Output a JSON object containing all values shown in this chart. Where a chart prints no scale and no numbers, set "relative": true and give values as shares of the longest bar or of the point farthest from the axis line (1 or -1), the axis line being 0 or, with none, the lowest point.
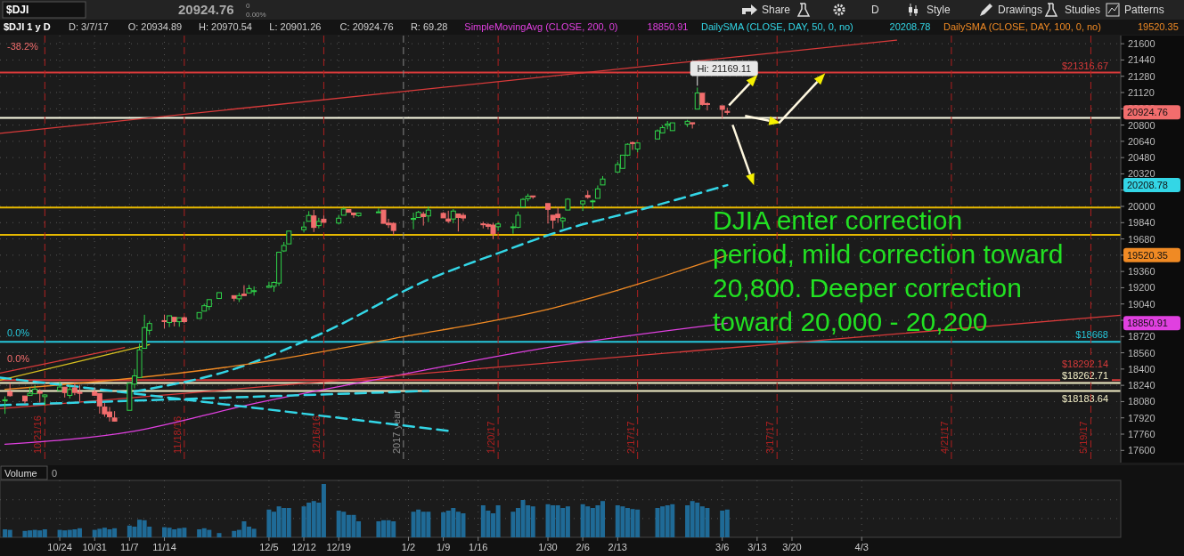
{
  "chart_data": [
    {
      "type": "candlestick",
      "title": "$DJI 1 y D",
      "x": [
        "2016-10-13",
        "2016-10-14",
        "2016-10-17",
        "2016-10-18",
        "2016-10-19",
        "2016-10-20",
        "2016-10-21",
        "2016-10-24",
        "2016-10-25",
        "2016-10-26",
        "2016-10-27",
        "2016-10-28",
        "2016-10-31",
        "2016-11-01",
        "2016-11-02",
        "2016-11-03",
        "2016-11-04",
        "2016-11-07",
        "2016-11-08",
        "2016-11-09",
        "2016-11-10",
        "2016-11-11",
        "2016-11-14",
        "2016-11-15",
        "2016-11-16",
        "2016-11-17",
        "2016-11-18",
        "2016-11-21",
        "2016-11-22",
        "2016-11-23",
        "2016-11-25",
        "2016-11-28",
        "2016-11-29",
        "2016-11-30",
        "2016-12-01",
        "2016-12-02",
        "2016-12-05",
        "2016-12-06",
        "2016-12-07",
        "2016-12-08",
        "2016-12-09",
        "2016-12-12",
        "2016-12-13",
        "2016-12-14",
        "2016-12-15",
        "2016-12-16",
        "2016-12-19",
        "2016-12-20",
        "2016-12-21",
        "2016-12-22",
        "2016-12-23",
        "2016-12-27",
        "2016-12-28",
        "2016-12-29",
        "2016-12-30",
        "2017-01-03",
        "2017-01-04",
        "2017-01-05",
        "2017-01-06",
        "2017-01-09",
        "2017-01-10",
        "2017-01-11",
        "2017-01-12",
        "2017-01-13",
        "2017-01-17",
        "2017-01-18",
        "2017-01-19",
        "2017-01-20",
        "2017-01-23",
        "2017-01-24",
        "2017-01-25",
        "2017-01-26",
        "2017-01-27",
        "2017-01-30",
        "2017-01-31",
        "2017-02-01",
        "2017-02-02",
        "2017-02-03",
        "2017-02-06",
        "2017-02-07",
        "2017-02-08",
        "2017-02-09",
        "2017-02-10",
        "2017-02-13",
        "2017-02-14",
        "2017-02-15",
        "2017-02-16",
        "2017-02-17",
        "2017-02-21",
        "2017-02-22",
        "2017-02-23",
        "2017-02-24",
        "2017-02-27",
        "2017-02-28",
        "2017-03-01",
        "2017-03-02",
        "2017-03-03",
        "2017-03-06",
        "2017-03-07"
      ],
      "ohlc": [
        [
          18088,
          18131,
          17959,
          18098
        ],
        [
          18177,
          18261,
          18129,
          18138
        ],
        [
          18135,
          18135,
          18060,
          18086
        ],
        [
          18140,
          18221,
          18140,
          18161
        ],
        [
          18157,
          18244,
          18157,
          18202
        ],
        [
          18178,
          18202,
          18071,
          18162
        ],
        [
          18129,
          18151,
          18041,
          18145
        ],
        [
          18189,
          18278,
          18189,
          18223
        ],
        [
          18222,
          18222,
          18120,
          18169
        ],
        [
          18141,
          18242,
          18111,
          18199
        ],
        [
          18215,
          18266,
          18143,
          18170
        ],
        [
          18172,
          18244,
          18080,
          18161
        ],
        [
          18176,
          18219,
          18142,
          18142
        ],
        [
          18158,
          18158,
          17962,
          18037
        ],
        [
          18026,
          18067,
          17931,
          17959
        ],
        [
          17978,
          18026,
          17884,
          17930
        ],
        [
          17919,
          17986,
          17884,
          17888
        ],
        [
          17994,
          18263,
          17994,
          18260
        ],
        [
          18252,
          18400,
          18210,
          18333
        ],
        [
          18317,
          18650,
          18317,
          18589
        ],
        [
          18604,
          18934,
          18604,
          18808
        ],
        [
          18781,
          18873,
          18736,
          18848
        ],
        [
          18876,
          18935,
          18801,
          18869
        ],
        [
          18858,
          18925,
          18813,
          18924
        ],
        [
          18909,
          18909,
          18820,
          18868
        ],
        [
          18866,
          18904,
          18816,
          18904
        ],
        [
          18905,
          18915,
          18849,
          18867
        ],
        [
          18898,
          18957,
          18898,
          18956
        ],
        [
          18970,
          19043,
          18970,
          19023
        ],
        [
          19015,
          19084,
          18980,
          19083
        ],
        [
          19094,
          19153,
          19094,
          19152
        ],
        [
          19122,
          19122,
          19067,
          19097
        ],
        [
          19091,
          19150,
          19059,
          19122
        ],
        [
          19137,
          19225,
          19122,
          19123
        ],
        [
          19149,
          19228,
          19149,
          19191
        ],
        [
          19162,
          19213,
          19122,
          19171
        ],
        [
          19203,
          19259,
          19203,
          19216
        ],
        [
          19215,
          19260,
          19160,
          19252
        ],
        [
          19246,
          19549,
          19219,
          19549
        ],
        [
          19562,
          19650,
          19552,
          19615
        ],
        [
          19631,
          19757,
          19630,
          19757
        ],
        [
          19771,
          19851,
          19743,
          19797
        ],
        [
          19853,
          19953,
          19853,
          19911
        ],
        [
          19906,
          19966,
          19748,
          19793
        ],
        [
          19811,
          19888,
          19784,
          19852
        ],
        [
          19874,
          19910,
          19843,
          19843
        ],
        [
          19836,
          19917,
          19822,
          19884
        ],
        [
          19913,
          19987,
          19913,
          19974
        ],
        [
          19969,
          19969,
          19941,
          19942
        ],
        [
          19935,
          19939,
          19888,
          19918
        ],
        [
          19909,
          19934,
          19899,
          19934
        ],
        [
          19943,
          19980,
          19939,
          19946
        ],
        [
          19964,
          19965,
          19833,
          19833
        ],
        [
          19835,
          19878,
          19788,
          19819
        ],
        [
          19833,
          19843,
          19718,
          19763
        ],
        [
          19872,
          19938,
          19775,
          19882
        ],
        [
          19891,
          19956,
          19891,
          19942
        ],
        [
          19924,
          19948,
          19811,
          19899
        ],
        [
          19906,
          19999,
          19845,
          19964
        ],
        [
          19931,
          19943,
          19887,
          19887
        ],
        [
          19876,
          19957,
          19836,
          19855
        ],
        [
          19876,
          19973,
          19834,
          19954
        ],
        [
          19926,
          19926,
          19753,
          19891
        ],
        [
          19912,
          19935,
          19856,
          19886
        ],
        [
          19828,
          19849,
          19784,
          19826
        ],
        [
          19822,
          19836,
          19774,
          19804
        ],
        [
          19816,
          19838,
          19678,
          19732
        ],
        [
          19800,
          19843,
          19759,
          19827
        ],
        [
          19795,
          19833,
          19731,
          19799
        ],
        [
          19794,
          19949,
          19786,
          19913
        ],
        [
          19994,
          20082,
          19994,
          20069
        ],
        [
          20076,
          20125,
          20050,
          20100
        ],
        [
          20103,
          20104,
          20074,
          20094
        ],
        [
          20028,
          20028,
          19831,
          19971
        ],
        [
          19913,
          19913,
          19781,
          19864
        ],
        [
          19923,
          19989,
          19837,
          19891
        ],
        [
          19858,
          19897,
          19784,
          19884
        ],
        [
          19964,
          20081,
          19964,
          20071
        ],
        [
          20025,
          20060,
          19955,
          20053
        ],
        [
          20107,
          20155,
          20075,
          20090
        ],
        [
          20049,
          20067,
          19973,
          20054
        ],
        [
          20079,
          20206,
          20079,
          20172
        ],
        [
          20211,
          20298,
          20211,
          20269
        ],
        [
          20338,
          20441,
          20338,
          20412
        ],
        [
          20374,
          20504,
          20374,
          20504
        ],
        [
          20504,
          20620,
          20495,
          20611
        ],
        [
          20627,
          20639,
          20556,
          20619
        ],
        [
          20564,
          20624,
          20532,
          20624
        ],
        [
          20663,
          20757,
          20663,
          20743
        ],
        [
          20723,
          20799,
          20721,
          20775
        ],
        [
          20796,
          20840,
          20758,
          20810
        ],
        [
          20745,
          20822,
          20745,
          20822
        ],
        [
          20808,
          20851,
          20781,
          20837
        ],
        [
          20823,
          20823,
          20766,
          20812
        ],
        [
          20957,
          21169.11,
          20957,
          21115
        ],
        [
          21113,
          21113,
          20991,
          21003
        ],
        [
          21011,
          21025,
          20944,
          21006
        ],
        [
          20989,
          20989,
          20863,
          20954
        ],
        [
          20934.89,
          20970.54,
          20901.26,
          20924.76
        ]
      ],
      "series": [
        {
          "type": "line",
          "name": "SimpleMovingAvg (CLOSE, 200, 0)",
          "color": "#e040e0",
          "x": [
            "2016-10-13",
            "2016-11-08",
            "2016-12-01",
            "2016-12-30",
            "2017-01-31",
            "2017-03-07"
          ],
          "values": [
            17660,
            17790,
            18050,
            18330,
            18620,
            18851
          ]
        },
        {
          "type": "line",
          "name": "DailySMA (CLOSE, DAY, 50, 0, no)",
          "color": "#33d6e6",
          "line_style": "dashed",
          "x": [
            "2016-11-08",
            "2016-11-28",
            "2016-12-16",
            "2017-01-06",
            "2017-01-20",
            "2017-02-03",
            "2017-02-17",
            "2017-03-07"
          ],
          "values": [
            18180,
            18400,
            18760,
            19280,
            19540,
            19780,
            19960,
            20209
          ]
        },
        {
          "type": "line",
          "name": "DailySMA (CLOSE, DAY, 100, 0, no)",
          "color": "#f08a24",
          "x": [
            "2016-10-13",
            "2016-12-01",
            "2016-12-30",
            "2017-01-31",
            "2017-03-07"
          ],
          "values": [
            18200,
            18450,
            18700,
            19000,
            19520
          ]
        },
        {
          "type": "line",
          "color": "#d83a3a",
          "x": [
            "2016-10-12",
            "2017-04-10"
          ],
          "values": [
            20718,
            21635
          ]
        },
        {
          "type": "line",
          "color": "#d83a3a",
          "x": [
            "2016-10-12",
            "2017-05-25"
          ],
          "values": [
            18010,
            18930
          ]
        },
        {
          "type": "line",
          "color": "#d83a3a",
          "x": [
            "2016-10-12",
            "2016-11-06"
          ],
          "values": [
            18360,
            18613
          ]
        },
        {
          "type": "line",
          "color": "#d8c020",
          "x": [
            "2016-10-12",
            "2016-11-11"
          ],
          "values": [
            18290,
            18640
          ]
        },
        {
          "type": "line",
          "color": "#33d6e6",
          "line_style": "dashed",
          "x": [
            "2016-10-12",
            "2017-01-10"
          ],
          "values": [
            18316,
            17792
          ]
        },
        {
          "type": "line",
          "color": "#33d6e6",
          "line_style": "dashed",
          "x": [
            "2016-10-12",
            "2017-01-06"
          ],
          "values": [
            18045,
            18185
          ]
        }
      ],
      "ref_lines": [
        {
          "axis": "y",
          "value": 21316.67,
          "label": "$21316.67",
          "color": "#d83a3a"
        },
        {
          "axis": "y",
          "value": 20870,
          "label": null,
          "color": "#ffffe8"
        },
        {
          "axis": "y",
          "value": 19990,
          "label": null,
          "color": "#e6b800"
        },
        {
          "axis": "y",
          "value": 19720,
          "label": null,
          "color": "#e6b800"
        },
        {
          "axis": "y",
          "value": 18668,
          "label": "$18668",
          "color": "#26c6da"
        },
        {
          "axis": "y",
          "value": 18292.14,
          "label": "$18292.14",
          "color": "#d83a3a"
        },
        {
          "axis": "y",
          "value": 18262.71,
          "label": "$18262.71",
          "color": "#f4f0c8"
        },
        {
          "axis": "y",
          "value": 18183.64,
          "label": "$18183.64",
          "color": "#f4f0c8"
        },
        {
          "axis": "x",
          "value": "2016-10-21",
          "label": "10/21/16",
          "color": "#b02020",
          "line_style": "dashed"
        },
        {
          "axis": "x",
          "value": "2016-11-18",
          "label": "11/18/16",
          "color": "#b02020",
          "line_style": "dashed"
        },
        {
          "axis": "x",
          "value": "2016-12-16",
          "label": "12/16/16",
          "color": "#b02020",
          "line_style": "dashed"
        },
        {
          "axis": "x",
          "value": "2017-01-01",
          "label": "2017 year",
          "color": "#888888",
          "line_style": "dashed"
        },
        {
          "axis": "x",
          "value": "2017-01-20",
          "label": "1/20/17",
          "color": "#b02020",
          "line_style": "dashed"
        },
        {
          "axis": "x",
          "value": "2017-02-17",
          "label": "2/17/17",
          "color": "#b02020",
          "line_style": "dashed"
        },
        {
          "axis": "x",
          "value": "2017-03-17",
          "label": "3/17/17",
          "color": "#b02020",
          "line_style": "dashed"
        },
        {
          "axis": "x",
          "value": "2017-04-21",
          "label": "4/21/17",
          "color": "#b02020",
          "line_style": "dashed"
        },
        {
          "axis": "x",
          "value": "2017-05-19",
          "label": "5/19/17",
          "color": "#b02020",
          "line_style": "dashed"
        }
      ],
      "annotations": [
        "$DJI",
        "0",
        "0.00%",
        "D: 3/7/17",
        "O: 20934.89",
        "H: 20970.54",
        "L: 20901.26",
        "C: 20924.76",
        "R: 69.28",
        "Share",
        "D",
        "Style",
        "Drawings",
        "Studies",
        "Patterns",
        {
          "text": "Hi: 21169.11",
          "x": "2017-03-01",
          "y": 21169.11
        },
        "-38.2%",
        "0.0%",
        "0.0%",
        "DJIA enter correction",
        "period, mild correction toward",
        "20,800. Deeper correction",
        "toward 20,000 - 20,200",
        "20924.76",
        "18850.91",
        "20208.78",
        "19520.35",
        "20924.76",
        "20208.78",
        "19520.35",
        "18850.91"
      ],
      "xlim": [
        "2016-10-12",
        "2017-05-25"
      ],
      "xticks": [
        {
          "value": "2016-10-24",
          "label": null
        },
        {
          "value": "2016-10-31",
          "label": null
        },
        {
          "value": "2016-11-07",
          "label": null
        },
        {
          "value": "2016-11-14",
          "label": null
        },
        {
          "value": "2016-12-05",
          "label": null
        },
        {
          "value": "2016-12-12",
          "label": null
        },
        {
          "value": "2016-12-19",
          "label": null
        },
        {
          "value": "2017-01-02",
          "label": null
        },
        {
          "value": "2017-01-09",
          "label": null
        },
        {
          "value": "2017-01-16",
          "label": null
        },
        {
          "value": "2017-01-30",
          "label": null
        },
        {
          "value": "2017-02-06",
          "label": null
        },
        {
          "value": "2017-02-13",
          "label": null
        },
        {
          "value": "2017-03-06",
          "label": null
        },
        {
          "value": "2017-03-13",
          "label": null
        },
        {
          "value": "2017-03-20",
          "label": null
        },
        {
          "value": "2017-04-03",
          "label": null
        }
      ],
      "ylim": [
        17480,
        21680
      ],
      "yticks": [
        17600,
        17760,
        17920,
        18080,
        18240,
        18400,
        18560,
        18720,
        {
          "value": 18880,
          "label": null
        },
        19040,
        19200,
        19360,
        {
          "value": 19520,
          "label": null
        },
        19680,
        19840,
        20000,
        {
          "value": 20160,
          "label": null
        },
        20320,
        20480,
        20640,
        20800,
        20960,
        21120,
        21280,
        21440,
        21600
      ],
      "tick_labels": "y",
      "grid": true
    },
    {
      "type": "bar",
      "title": "Volume",
      "relative": true,
      "color": "#1f6a96",
      "annotations": [
        "0"
      ],
      "tick_labels": "x",
      "grid": true,
      "x": [
        "2016-10-13",
        "2016-10-14",
        "2016-10-17",
        "2016-10-18",
        "2016-10-19",
        "2016-10-20",
        "2016-10-21",
        "2016-10-24",
        "2016-10-25",
        "2016-10-26",
        "2016-10-27",
        "2016-10-28",
        "2016-10-31",
        "2016-11-01",
        "2016-11-02",
        "2016-11-03",
        "2016-11-04",
        "2016-11-07",
        "2016-11-08",
        "2016-11-09",
        "2016-11-10",
        "2016-11-11",
        "2016-11-14",
        "2016-11-15",
        "2016-11-16",
        "2016-11-17",
        "2016-11-18",
        "2016-11-21",
        "2016-11-22",
        "2016-11-23",
        "2016-11-25",
        "2016-11-28",
        "2016-11-29",
        "2016-11-30",
        "2016-12-01",
        "2016-12-02",
        "2016-12-05",
        "2016-12-06",
        "2016-12-07",
        "2016-12-08",
        "2016-12-09",
        "2016-12-12",
        "2016-12-13",
        "2016-12-14",
        "2016-12-15",
        "2016-12-16",
        "2016-12-19",
        "2016-12-20",
        "2016-12-21",
        "2016-12-22",
        "2016-12-23",
        "2016-12-27",
        "2016-12-28",
        "2016-12-29",
        "2016-12-30",
        "2017-01-03",
        "2017-01-04",
        "2017-01-05",
        "2017-01-06",
        "2017-01-09",
        "2017-01-10",
        "2017-01-11",
        "2017-01-12",
        "2017-01-13",
        "2017-01-17",
        "2017-01-18",
        "2017-01-19",
        "2017-01-20",
        "2017-01-23",
        "2017-01-24",
        "2017-01-25",
        "2017-01-26",
        "2017-01-27",
        "2017-01-30",
        "2017-01-31",
        "2017-02-01",
        "2017-02-02",
        "2017-02-03",
        "2017-02-06",
        "2017-02-07",
        "2017-02-08",
        "2017-02-09",
        "2017-02-10",
        "2017-02-13",
        "2017-02-14",
        "2017-02-15",
        "2017-02-16",
        "2017-02-17",
        "2017-02-21",
        "2017-02-22",
        "2017-02-23",
        "2017-02-24",
        "2017-02-27",
        "2017-02-28",
        "2017-03-01",
        "2017-03-02",
        "2017-03-03",
        "2017-03-06",
        "2017-03-07"
      ],
      "values": [
        0.15,
        0.14,
        0.12,
        0.13,
        0.14,
        0.13,
        0.15,
        0.14,
        0.13,
        0.14,
        0.15,
        0.17,
        0.14,
        0.16,
        0.18,
        0.15,
        0.17,
        0.22,
        0.2,
        0.33,
        0.32,
        0.2,
        0.19,
        0.18,
        0.15,
        0.17,
        0.18,
        0.15,
        0.17,
        0.14,
        0.08,
        0.12,
        0.14,
        0.3,
        0.2,
        0.16,
        0.52,
        0.48,
        0.58,
        0.55,
        0.55,
        0.58,
        0.65,
        0.68,
        0.65,
        1,
        0.5,
        0.48,
        0.42,
        0.42,
        0.3,
        0.3,
        0.32,
        0.32,
        0.3,
        0.48,
        0.52,
        0.48,
        0.48,
        0.47,
        0.5,
        0.55,
        0.48,
        0.45,
        0.6,
        0.5,
        0.45,
        0.6,
        0.48,
        0.55,
        0.7,
        0.6,
        0.58,
        0.62,
        0.6,
        0.6,
        0.55,
        0.58,
        0.62,
        0.58,
        0.55,
        0.6,
        0.68,
        0.6,
        0.58,
        0.55,
        0.53,
        0.52,
        0.55,
        0.58,
        0.6,
        0.62,
        0.6,
        0.68,
        0.65,
        0.58,
        0.55,
        0.5,
        0.52
      ],
      "xlim": [
        "2016-10-12",
        "2017-05-25"
      ],
      "xticks": [
        {
          "value": "2016-10-24",
          "label": "10/24"
        },
        {
          "value": "2016-10-31",
          "label": "10/31"
        },
        {
          "value": "2016-11-07",
          "label": "11/7"
        },
        {
          "value": "2016-11-14",
          "label": "11/14"
        },
        {
          "value": "2016-12-05",
          "label": "12/5"
        },
        {
          "value": "2016-12-12",
          "label": "12/12"
        },
        {
          "value": "2016-12-19",
          "label": "12/19"
        },
        {
          "value": "2017-01-02",
          "label": "1/2"
        },
        {
          "value": "2017-01-09",
          "label": "1/9"
        },
        {
          "value": "2017-01-16",
          "label": "1/16"
        },
        {
          "value": "2017-01-30",
          "label": "1/30"
        },
        {
          "value": "2017-02-06",
          "label": "2/6"
        },
        {
          "value": "2017-02-13",
          "label": "2/13"
        },
        {
          "value": "2017-03-06",
          "label": "3/6"
        },
        {
          "value": "2017-03-13",
          "label": "3/13"
        },
        {
          "value": "2017-03-20",
          "label": "3/20"
        },
        {
          "value": "2017-04-03",
          "label": "4/3"
        }
      ]
    }
  ]
}
